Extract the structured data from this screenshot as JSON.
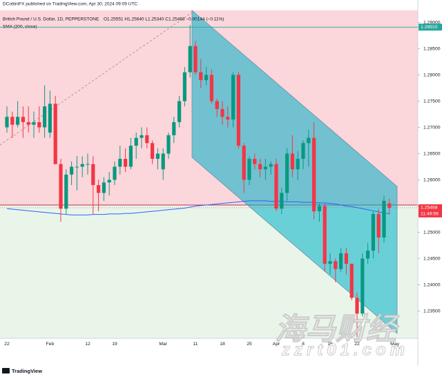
{
  "header": {
    "publisher": "DCottiniFX published on TradingView.com, Apr 30, 2024 09:09 UTC",
    "symbol": "British Pound / U.S. Dollar, 1D, PEPPERSTONE",
    "quote": "O1.25551 H1.25640 L1.25340 C1.25468 −0.00144 (−0.11%)"
  },
  "footer": "TradingView",
  "watermark": {
    "title": "海马财经",
    "url": "zzrt01.com"
  },
  "chart_data": {
    "type": "candlestick",
    "categories": [
      "22",
      null,
      null,
      null,
      null,
      null,
      null,
      null,
      "Feb",
      null,
      null,
      null,
      null,
      null,
      null,
      "12",
      null,
      null,
      null,
      null,
      "19",
      null,
      null,
      null,
      null,
      null,
      null,
      null,
      null,
      "Mar",
      null,
      null,
      null,
      null,
      null,
      "11",
      null,
      null,
      null,
      null,
      "18",
      null,
      null,
      null,
      null,
      "25",
      null,
      null,
      null,
      null,
      "Apr",
      null,
      null,
      null,
      null,
      "8",
      null,
      null,
      null,
      null,
      "15",
      null,
      null,
      null,
      null,
      "22",
      null,
      null,
      null,
      null,
      null,
      null
    ],
    "x_end_label": "May",
    "open": [
      1.27,
      1.272,
      1.2705,
      1.272,
      1.271,
      1.2705,
      1.271,
      1.27,
      1.269,
      1.2745,
      1.263,
      1.2545,
      1.261,
      1.2625,
      1.2625,
      1.263,
      1.263,
      1.259,
      1.2575,
      1.2595,
      1.26,
      1.2625,
      1.264,
      1.2625,
      1.2665,
      1.268,
      1.2685,
      1.267,
      1.264,
      1.262,
      1.265,
      1.2685,
      1.271,
      1.275,
      1.2805,
      1.2855,
      1.2805,
      1.279,
      1.28,
      1.275,
      1.2735,
      1.272,
      1.2715,
      1.28,
      1.2665,
      1.26,
      1.264,
      1.263,
      1.262,
      1.2625,
      1.263,
      1.2545,
      1.2575,
      1.265,
      1.262,
      1.264,
      1.267,
      1.268,
      1.254,
      1.255,
      1.244,
      1.2445,
      1.243,
      1.246,
      1.244,
      1.2375,
      1.2345,
      1.245,
      1.2465,
      1.2535,
      1.249,
      1.25551
    ],
    "high": [
      1.274,
      1.273,
      1.275,
      1.274,
      1.274,
      1.273,
      1.274,
      1.278,
      1.277,
      1.276,
      1.264,
      1.262,
      1.2635,
      1.2645,
      1.2645,
      1.265,
      1.2645,
      1.26,
      1.2605,
      1.2615,
      1.2635,
      1.2665,
      1.266,
      1.268,
      1.269,
      1.27,
      1.27,
      1.2675,
      1.266,
      1.266,
      1.269,
      1.272,
      1.276,
      1.2815,
      1.2895,
      1.2865,
      1.283,
      1.2815,
      1.281,
      1.2755,
      1.275,
      1.274,
      1.2805,
      1.2805,
      1.267,
      1.2645,
      1.265,
      1.264,
      1.264,
      1.2635,
      1.264,
      1.2585,
      1.266,
      1.2685,
      1.2655,
      1.2675,
      1.2695,
      1.271,
      1.2555,
      1.2555,
      1.246,
      1.245,
      1.247,
      1.247,
      1.244,
      1.2385,
      1.246,
      1.248,
      1.254,
      1.2545,
      1.257,
      1.2564
    ],
    "low": [
      1.269,
      1.268,
      1.27,
      1.268,
      1.269,
      1.268,
      1.269,
      1.268,
      1.268,
      1.263,
      1.252,
      1.2535,
      1.259,
      1.258,
      1.2605,
      1.261,
      1.2535,
      1.254,
      1.256,
      1.257,
      1.259,
      1.261,
      1.2615,
      1.262,
      1.264,
      1.266,
      1.266,
      1.263,
      1.262,
      1.26,
      1.264,
      1.267,
      1.27,
      1.274,
      1.2795,
      1.28,
      1.2775,
      1.278,
      1.2745,
      1.272,
      1.2705,
      1.27,
      1.27,
      1.266,
      1.2575,
      1.259,
      1.262,
      1.2605,
      1.26,
      1.261,
      1.254,
      1.2535,
      1.256,
      1.2605,
      1.26,
      1.262,
      1.2625,
      1.2525,
      1.252,
      1.2425,
      1.242,
      1.2405,
      1.2425,
      1.242,
      1.237,
      1.23,
      1.234,
      1.244,
      1.245,
      1.246,
      1.248,
      1.2534
    ],
    "close": [
      1.272,
      1.2705,
      1.272,
      1.271,
      1.2705,
      1.271,
      1.27,
      1.274,
      1.2745,
      1.263,
      1.2545,
      1.261,
      1.2625,
      1.2625,
      1.263,
      1.263,
      1.259,
      1.2575,
      1.2595,
      1.26,
      1.2625,
      1.264,
      1.2625,
      1.2665,
      1.268,
      1.2685,
      1.267,
      1.264,
      1.265,
      1.265,
      1.2685,
      1.271,
      1.275,
      1.2805,
      1.2855,
      1.2805,
      1.279,
      1.28,
      1.275,
      1.2735,
      1.272,
      1.2715,
      1.28,
      1.2665,
      1.26,
      1.264,
      1.263,
      1.262,
      1.2625,
      1.263,
      1.2545,
      1.2575,
      1.265,
      1.262,
      1.264,
      1.267,
      1.268,
      1.254,
      1.255,
      1.244,
      1.2445,
      1.243,
      1.246,
      1.244,
      1.2375,
      1.2345,
      1.245,
      1.2465,
      1.2535,
      1.249,
      1.256,
      1.25468
    ],
    "up_color": "#089981",
    "down_color": "#f23645",
    "sma": {
      "name": "SMA (200, close)",
      "color": "#2962ff",
      "values": [
        1.2545,
        1.2544,
        1.2543,
        1.2542,
        1.2541,
        1.254,
        1.2539,
        1.2538,
        1.2537,
        1.2536,
        1.2535,
        1.2534,
        1.2533,
        1.2533,
        1.2533,
        1.2533,
        1.2534,
        1.2534,
        1.2534,
        1.2535,
        1.2535,
        1.2535,
        1.2536,
        1.2536,
        1.2537,
        1.2538,
        1.2539,
        1.254,
        1.2541,
        1.2542,
        1.2543,
        1.2544,
        1.2545,
        1.2546,
        1.2548,
        1.255,
        1.2551,
        1.2552,
        1.2553,
        1.2554,
        1.2555,
        1.2556,
        1.2557,
        1.2558,
        1.2559,
        1.256,
        1.256,
        1.256,
        1.256,
        1.2559,
        1.2559,
        1.2559,
        1.2558,
        1.2558,
        1.2558,
        1.2557,
        1.2557,
        1.2557,
        1.2556,
        1.2556,
        1.2555,
        1.2554,
        1.2552,
        1.255,
        1.2549,
        1.2547,
        1.2545,
        1.2543,
        1.2541,
        1.2539,
        1.2537,
        1.2535
      ]
    },
    "ylim": [
      1.2298,
      1.2923
    ],
    "yticks": [
      {
        "value": 1.235,
        "label": "1.23500"
      },
      {
        "value": 1.24,
        "label": "1.24000"
      },
      {
        "value": 1.245,
        "label": "1.24500"
      },
      {
        "value": 1.25,
        "label": "1.25000"
      },
      {
        "value": 1.255,
        "label": "1.25500"
      },
      {
        "value": 1.26,
        "label": "1.26000"
      },
      {
        "value": 1.265,
        "label": "1.26500"
      },
      {
        "value": 1.27,
        "label": "1.27000"
      },
      {
        "value": 1.275,
        "label": "1.27500"
      },
      {
        "value": 1.28,
        "label": "1.28000"
      },
      {
        "value": 1.285,
        "label": "1.28500"
      },
      {
        "value": 1.29,
        "label": "1.29000"
      }
    ],
    "level": {
      "value": 1.2891,
      "label": "1.28910",
      "color": "#26a69a"
    },
    "last_price": 1.25468,
    "countdown": "11:49:58"
  }
}
